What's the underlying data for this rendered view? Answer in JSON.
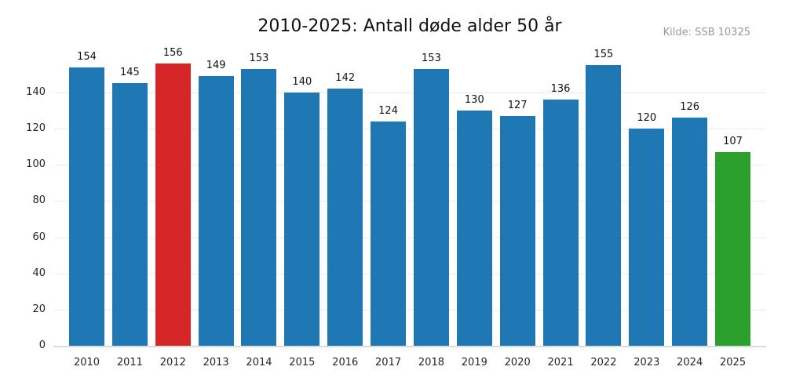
{
  "header": {
    "title": "2010-2025: Antall døde alder 50 år",
    "source_label": "Kilde: SSB 10325"
  },
  "chart_data": {
    "type": "bar",
    "title": "2010-2025: Antall døde alder 50 år",
    "categories": [
      "2010",
      "2011",
      "2012",
      "2013",
      "2014",
      "2015",
      "2016",
      "2017",
      "2018",
      "2019",
      "2020",
      "2021",
      "2022",
      "2023",
      "2024",
      "2025"
    ],
    "values": [
      154,
      145,
      156,
      149,
      153,
      140,
      142,
      124,
      153,
      130,
      127,
      136,
      155,
      120,
      126,
      107
    ],
    "value_labels_shown": true,
    "colors": {
      "default_bar": "#1f77b4",
      "highlight_bars": {
        "2012": "#d62728",
        "2025": "#2ca02c"
      },
      "gridline": "#ebebeb",
      "baseline": "#dcdcdc",
      "tick_text": "#262626",
      "title_text": "#111111",
      "source_text": "#999999"
    },
    "xlabel": "",
    "ylabel": "",
    "yticks": [
      0,
      20,
      40,
      60,
      80,
      100,
      120,
      140
    ],
    "ylim": [
      0,
      167
    ],
    "grid": true,
    "legend": "none"
  }
}
